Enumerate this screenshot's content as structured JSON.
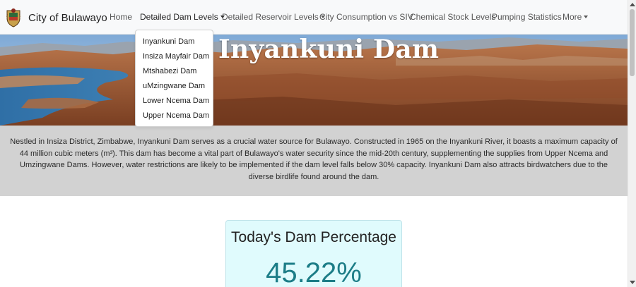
{
  "navbar": {
    "brand": "City of Bulawayo",
    "items": [
      {
        "label": "Home"
      },
      {
        "label": "Detailed Dam Levels"
      },
      {
        "label": "Detailed Reservoir Levels"
      },
      {
        "label": "City Consumption vs SIV"
      },
      {
        "label": "Chemical Stock Levels"
      },
      {
        "label": "Pumping Statistics"
      },
      {
        "label": "More"
      }
    ]
  },
  "dropdown": {
    "items": [
      "Inyankuni Dam",
      "Insiza Mayfair Dam",
      "Mtshabezi Dam",
      "uMzingwane Dam",
      "Lower Ncema Dam",
      "Upper Ncema Dam"
    ]
  },
  "hero": {
    "title": "Inyankuni Dam"
  },
  "description": "Nestled in Insiza District, Zimbabwe, Inyankuni Dam serves as a crucial water source for Bulawayo. Constructed in 1965 on the Inyankuni River, it boasts a maximum capacity of 44 million cubic meters (m³). This dam has become a vital part of Bulawayo's water security since the mid-20th century, supplementing the supplies from Upper Ncema and Umzingwane Dams. However, water restrictions are likely to be implemented if the dam level falls below 30% capacity. Inyankuni Dam also attracts birdwatchers due to the diverse birdlife found around the dam.",
  "card": {
    "title": "Today's Dam Percentage",
    "value": "45.22%"
  },
  "colors": {
    "navbar_bg": "#f8f9fa",
    "desc_bg": "#d2d2d2",
    "card_bg": "#e0fbfd",
    "accent": "#1c7d87"
  }
}
